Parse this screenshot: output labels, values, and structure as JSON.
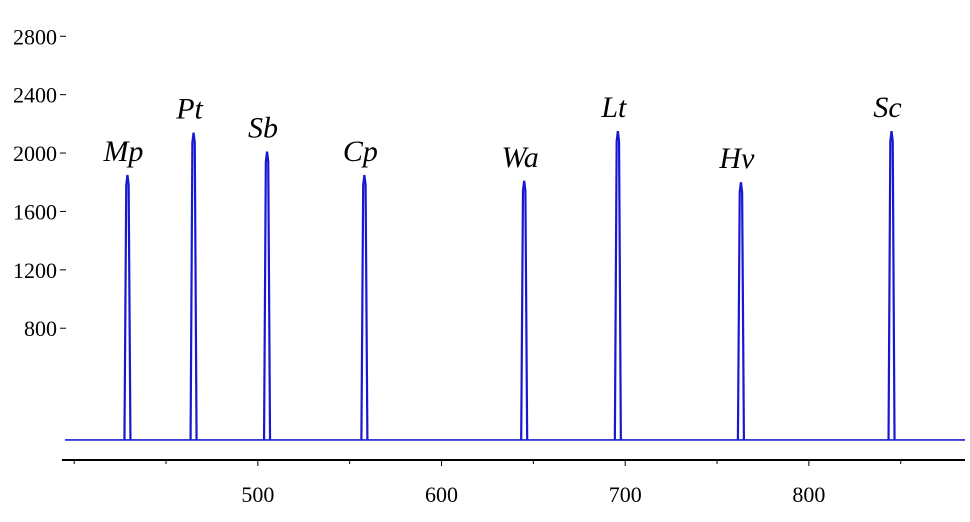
{
  "chart_data": {
    "type": "line",
    "title": "",
    "xlabel": "",
    "ylabel": "",
    "xlim": [
      395,
      885
    ],
    "ylim": [
      0,
      2980
    ],
    "x_ticks": [
      500,
      600,
      700,
      800
    ],
    "y_ticks": [
      800,
      1200,
      1600,
      2000,
      2400,
      2800
    ],
    "grid": false,
    "color": "#2020d0",
    "series": [
      {
        "points": [
          {
            "label": "Mp",
            "x": 429,
            "y": 1850
          },
          {
            "label": "Pt",
            "x": 465,
            "y": 2140
          },
          {
            "label": "Sb",
            "x": 505,
            "y": 2010
          },
          {
            "label": "Cp",
            "x": 558,
            "y": 1850
          },
          {
            "label": "Wa",
            "x": 645,
            "y": 1810
          },
          {
            "label": "Lt",
            "x": 696,
            "y": 2150
          },
          {
            "label": "Hv",
            "x": 763,
            "y": 1800
          },
          {
            "label": "Sc",
            "x": 845,
            "y": 2150
          }
        ]
      }
    ]
  }
}
